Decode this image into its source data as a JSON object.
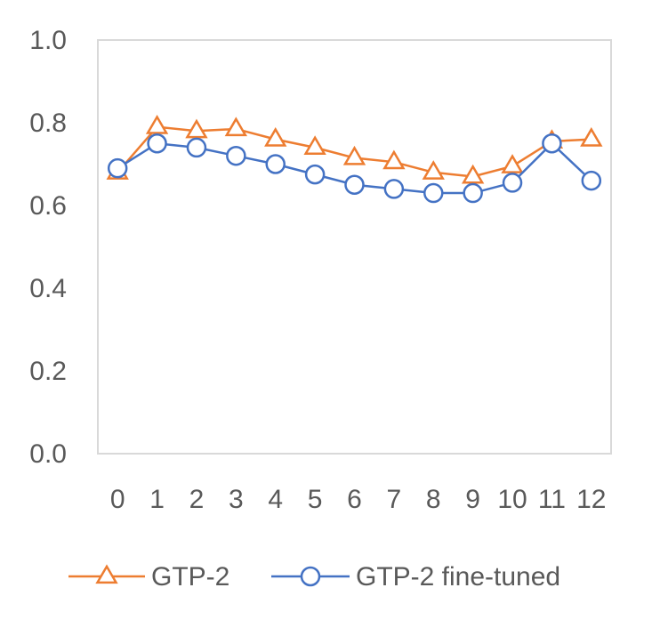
{
  "chart_data": {
    "type": "line",
    "categories": [
      "0",
      "1",
      "2",
      "3",
      "4",
      "5",
      "6",
      "7",
      "8",
      "9",
      "10",
      "11",
      "12"
    ],
    "ylim": [
      0,
      1.0
    ],
    "yticks": [
      "0.0",
      "0.2",
      "0.4",
      "0.6",
      "0.8",
      "1.0"
    ],
    "grid": false,
    "legend_position": "bottom",
    "series": [
      {
        "name": "GTP-2",
        "color": "#ED7D31",
        "marker": "triangle",
        "values": [
          0.68,
          0.79,
          0.78,
          0.785,
          0.76,
          0.74,
          0.715,
          0.705,
          0.68,
          0.67,
          0.695,
          0.755,
          0.76
        ]
      },
      {
        "name": "GTP-2 fine-tuned",
        "color": "#4472C4",
        "marker": "circle",
        "values": [
          0.69,
          0.75,
          0.74,
          0.72,
          0.7,
          0.675,
          0.65,
          0.64,
          0.63,
          0.63,
          0.655,
          0.75,
          0.66
        ]
      }
    ]
  }
}
